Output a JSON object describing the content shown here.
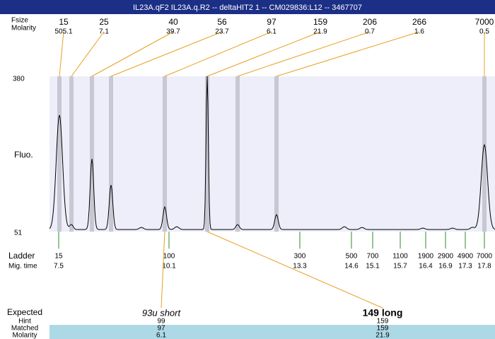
{
  "title": "IL23A.qF2 IL23A.q.R2 -- deltaHIT2 1 -- CM029836:L12 -- 3467707",
  "header_labels": [
    "Fsize",
    "Molarity"
  ],
  "peaks": [
    {
      "size": "15",
      "molarity": "505.1"
    },
    {
      "size": "25",
      "molarity": "7.1"
    },
    {
      "size": "40",
      "molarity": "39.7"
    },
    {
      "size": "56",
      "molarity": "23.7"
    },
    {
      "size": "97",
      "molarity": "6.1"
    },
    {
      "size": "159",
      "molarity": "21.9"
    },
    {
      "size": "206",
      "molarity": "0.7"
    },
    {
      "size": "266",
      "molarity": "1.6"
    },
    {
      "size": "7000",
      "molarity": "0.5"
    }
  ],
  "y_axis": {
    "top": "380",
    "bottom": "51",
    "label": "Fluo."
  },
  "ladder": {
    "label": "Ladder",
    "time_label": "Mig. time",
    "bands": [
      {
        "size": "15",
        "time": "7.5"
      },
      {
        "size": "100",
        "time": "10.1"
      },
      {
        "size": "300",
        "time": "13.3"
      },
      {
        "size": "500",
        "time": "14.6"
      },
      {
        "size": "700",
        "time": "15.1"
      },
      {
        "size": "1100",
        "time": "15.7"
      },
      {
        "size": "1900",
        "time": "16.4"
      },
      {
        "size": "2900",
        "time": "16.9"
      },
      {
        "size": "4900",
        "time": "17.3"
      },
      {
        "size": "7000",
        "time": "17.8"
      }
    ]
  },
  "expected": {
    "labels": [
      "Expected",
      "Hint",
      "Matched",
      "Molarity"
    ],
    "items": [
      {
        "name": "93u short",
        "hint": "99",
        "matched": "97",
        "molarity": "6.1"
      },
      {
        "name": "149 long",
        "hint": "159",
        "matched": "159",
        "molarity": "21.9"
      }
    ]
  }
}
